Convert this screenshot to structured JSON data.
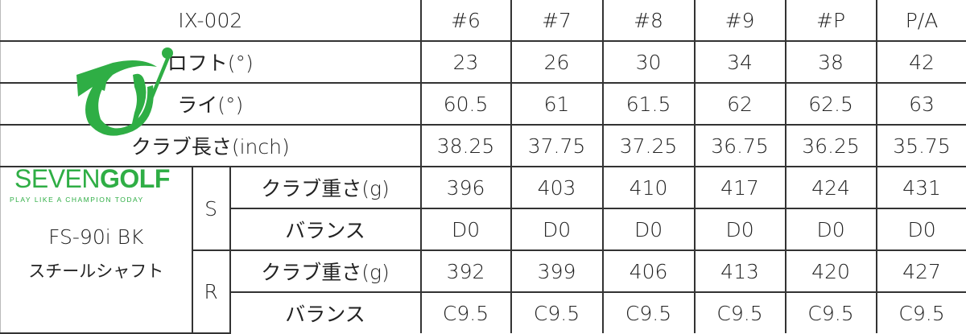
{
  "header": {
    "model": "IX-002",
    "columns": [
      "#6",
      "#7",
      "#8",
      "#9",
      "#P",
      "P/A"
    ]
  },
  "rows": [
    {
      "label": "ロフト(°)",
      "values": [
        "23",
        "26",
        "30",
        "34",
        "38",
        "42"
      ]
    },
    {
      "label": "ライ(°)",
      "values": [
        "60.5",
        "61",
        "61.5",
        "62",
        "62.5",
        "63"
      ]
    },
    {
      "label": "クラブ長さ(inch)",
      "values": [
        "38.25",
        "37.75",
        "37.25",
        "36.75",
        "36.25",
        "35.75"
      ]
    }
  ],
  "shaft": {
    "name": "FS-90i BK",
    "type": "スチールシャフト"
  },
  "flexes": [
    {
      "flex": "S",
      "rows": [
        {
          "label": "クラブ重さ(g)",
          "values": [
            "396",
            "403",
            "410",
            "417",
            "424",
            "431"
          ]
        },
        {
          "label": "バランス",
          "values": [
            "D0",
            "D0",
            "D0",
            "D0",
            "D0",
            "D0"
          ]
        }
      ]
    },
    {
      "flex": "R",
      "rows": [
        {
          "label": "クラブ重さ(g)",
          "values": [
            "392",
            "399",
            "406",
            "413",
            "420",
            "427"
          ]
        },
        {
          "label": "バランス",
          "values": [
            "C9.5",
            "C9.5",
            "C9.5",
            "C9.5",
            "C9.5",
            "C9.5"
          ]
        }
      ]
    }
  ],
  "watermark": {
    "brand_a": "SEVEN",
    "brand_b": "GOLF",
    "tagline": "PLAY LIKE A CHAMPION TODAY",
    "color": "#2fae45"
  }
}
